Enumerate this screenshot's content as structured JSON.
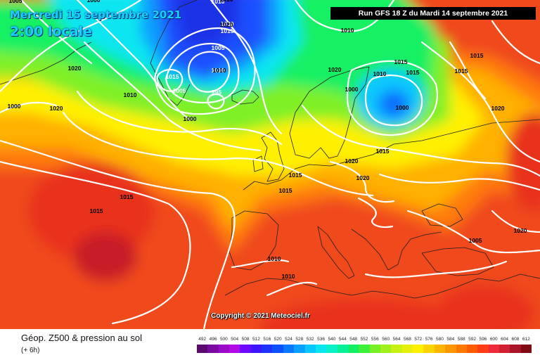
{
  "header": {
    "valid_date": "Mercredi 15 septembre 2021",
    "valid_time": "2:00 locale",
    "run": "Run GFS 18 Z du Mardi 14 septembre 2021"
  },
  "copyright": "Copyright © 2021 Meteociel.fr",
  "footer": {
    "title": "Géop. Z500 & pression au sol",
    "subtitle": "(+ 6h)"
  },
  "legend": {
    "ticks": [
      "492",
      "496",
      "500",
      "504",
      "508",
      "512",
      "516",
      "520",
      "524",
      "528",
      "532",
      "536",
      "540",
      "544",
      "548",
      "552",
      "556",
      "560",
      "564",
      "568",
      "572",
      "576",
      "580",
      "584",
      "588",
      "592",
      "596",
      "600",
      "604",
      "608",
      "612"
    ],
    "colors": [
      "#5a0a6e",
      "#7a0aa0",
      "#9a0ac8",
      "#b40ae8",
      "#6e0aff",
      "#3c14ff",
      "#1e32ff",
      "#0a50ff",
      "#0a78ff",
      "#0aa0ff",
      "#0ac8ff",
      "#0ae6f0",
      "#0af0c8",
      "#0af096",
      "#14f064",
      "#3cf03c",
      "#78f028",
      "#a0f01e",
      "#c8f014",
      "#e6f00a",
      "#fff000",
      "#ffd200",
      "#ffb400",
      "#ff9600",
      "#ff7800",
      "#ff5a00",
      "#ff3c14",
      "#f0283c",
      "#d21e32",
      "#aa1428",
      "#800a14"
    ]
  },
  "isobars": [
    {
      "label": "1010",
      "color": "#ffffff"
    },
    {
      "label": "1020",
      "color": "#ffffff"
    },
    {
      "label": "1015",
      "color": "#ffffff"
    },
    {
      "label": "1005",
      "color": "#ffffff"
    },
    {
      "label": "1015",
      "color": "#ffffff"
    },
    {
      "label": "1010",
      "color": "#ffffff"
    },
    {
      "label": "995",
      "color": "#ffffff"
    },
    {
      "label": "1000",
      "color": "#ffffff"
    },
    {
      "label": "1005",
      "color": "#ffffff"
    },
    {
      "label": "1010",
      "color": "#000000"
    },
    {
      "label": "1020",
      "color": "#000000"
    },
    {
      "label": "1010",
      "color": "#000000"
    },
    {
      "label": "1000",
      "color": "#000000"
    },
    {
      "label": "1020",
      "color": "#000000"
    },
    {
      "label": "1000",
      "color": "#000000"
    },
    {
      "label": "1005",
      "color": "#000000"
    },
    {
      "label": "1000",
      "color": "#000000"
    },
    {
      "label": "1010",
      "color": "#000000"
    },
    {
      "label": "1000",
      "color": "#000000"
    },
    {
      "label": "1015",
      "color": "#000000"
    },
    {
      "label": "1010",
      "color": "#000000"
    },
    {
      "label": "1015",
      "color": "#000000"
    },
    {
      "label": "1015",
      "color": "#000000"
    },
    {
      "label": "1015",
      "color": "#000000"
    },
    {
      "label": "1020",
      "color": "#000000"
    },
    {
      "label": "1015",
      "color": "#000000"
    },
    {
      "label": "1010",
      "color": "#000000"
    },
    {
      "label": "1020",
      "color": "#000000"
    },
    {
      "label": "1015",
      "color": "#000000"
    },
    {
      "label": "1015",
      "color": "#000000"
    },
    {
      "label": "1020",
      "color": "#000000"
    },
    {
      "label": "1020",
      "color": "#000000"
    },
    {
      "label": "1015",
      "color": "#000000"
    },
    {
      "label": "1015",
      "color": "#000000"
    },
    {
      "label": "1010",
      "color": "#000000"
    },
    {
      "label": "1010",
      "color": "#000000"
    },
    {
      "label": "1005",
      "color": "#000000"
    },
    {
      "label": "1020",
      "color": "#000000"
    },
    {
      "label": "1020",
      "color": "#000000"
    },
    {
      "label": "1000",
      "color": "#000000"
    }
  ]
}
